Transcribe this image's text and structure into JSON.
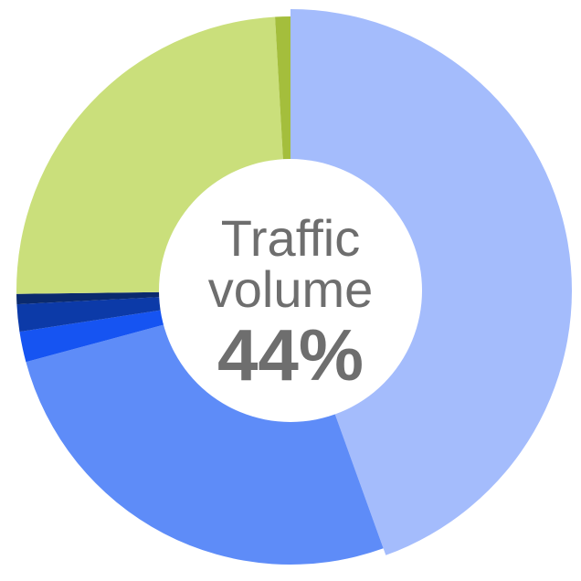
{
  "chart_data": {
    "type": "pie",
    "style": "donut",
    "center_label": {
      "line1": "Traffic",
      "line2": "volume",
      "value": "44%"
    },
    "slices": [
      {
        "value": 44.5,
        "color": "#a4bcfc"
      },
      {
        "value": 26.3,
        "color": "#5e8cf8"
      },
      {
        "value": 1.8,
        "color": "#1654f2"
      },
      {
        "value": 1.6,
        "color": "#0c3aa8"
      },
      {
        "value": 0.6,
        "color": "#0a2a6e"
      },
      {
        "value": 24.3,
        "color": "#cadf7b"
      },
      {
        "value": 0.9,
        "color": "#a4be3c"
      }
    ],
    "start_angle_deg": 0,
    "direction": "clockwise",
    "legend": "none"
  }
}
